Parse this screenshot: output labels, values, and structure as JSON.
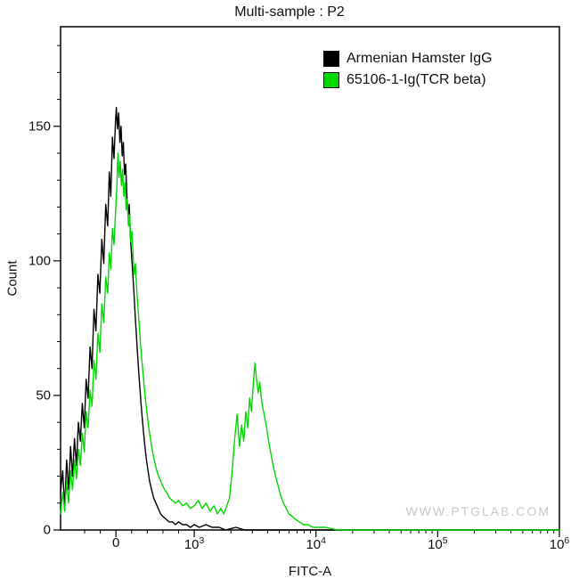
{
  "page": {
    "watermark": "WWW.PTGLAB.COM",
    "background": "#ffffff"
  },
  "chart_data": {
    "type": "line",
    "subtype": "flow-cytometry-histogram-overlay",
    "title": "Multi-sample : P2",
    "xlabel": "FITC-A",
    "ylabel": "Count",
    "grid": false,
    "legend_position": "top-right",
    "x_axis": {
      "scale": "biexponential",
      "linear_min": -707,
      "linear_max": 1000,
      "log_max": 1000000,
      "linear_fraction": 0.268,
      "major_ticks": [
        {
          "value": 0,
          "label": "0"
        },
        {
          "value": 1000,
          "label": "10",
          "sup": "3"
        },
        {
          "value": 10000,
          "label": "10",
          "sup": "4"
        },
        {
          "value": 100000,
          "label": "10",
          "sup": "5"
        },
        {
          "value": 1000000,
          "label": "10",
          "sup": "6"
        }
      ],
      "minor_ticks_linear": [
        -400,
        -200,
        200,
        400,
        600,
        800
      ]
    },
    "y_axis": {
      "min": 0,
      "max": 187,
      "major_ticks": [
        0,
        50,
        100,
        150
      ],
      "minor_step": 10
    },
    "series": [
      {
        "name": "Armenian Hamster IgG",
        "color": "#000000",
        "points": [
          [
            -707,
            14
          ],
          [
            -680,
            22
          ],
          [
            -655,
            8
          ],
          [
            -630,
            26
          ],
          [
            -605,
            15
          ],
          [
            -580,
            31
          ],
          [
            -555,
            20
          ],
          [
            -530,
            34
          ],
          [
            -505,
            24
          ],
          [
            -480,
            40
          ],
          [
            -455,
            33
          ],
          [
            -430,
            47
          ],
          [
            -405,
            38
          ],
          [
            -380,
            56
          ],
          [
            -355,
            49
          ],
          [
            -330,
            68
          ],
          [
            -305,
            60
          ],
          [
            -280,
            82
          ],
          [
            -255,
            74
          ],
          [
            -230,
            95
          ],
          [
            -205,
            88
          ],
          [
            -180,
            108
          ],
          [
            -155,
            99
          ],
          [
            -130,
            121
          ],
          [
            -105,
            113
          ],
          [
            -85,
            133
          ],
          [
            -65,
            124
          ],
          [
            -45,
            146
          ],
          [
            -25,
            138
          ],
          [
            -5,
            152
          ],
          [
            5,
            157
          ],
          [
            20,
            149
          ],
          [
            35,
            155
          ],
          [
            50,
            144
          ],
          [
            65,
            150
          ],
          [
            80,
            139
          ],
          [
            95,
            144
          ],
          [
            110,
            132
          ],
          [
            125,
            136
          ],
          [
            140,
            124
          ],
          [
            155,
            117
          ],
          [
            170,
            121
          ],
          [
            185,
            109
          ],
          [
            200,
            102
          ],
          [
            215,
            95
          ],
          [
            230,
            88
          ],
          [
            245,
            80
          ],
          [
            260,
            73
          ],
          [
            275,
            66
          ],
          [
            290,
            59
          ],
          [
            305,
            53
          ],
          [
            320,
            47
          ],
          [
            335,
            42
          ],
          [
            350,
            37
          ],
          [
            370,
            31
          ],
          [
            390,
            26
          ],
          [
            410,
            22
          ],
          [
            430,
            18
          ],
          [
            455,
            15
          ],
          [
            480,
            12
          ],
          [
            510,
            10
          ],
          [
            540,
            8
          ],
          [
            570,
            6
          ],
          [
            600,
            5
          ],
          [
            640,
            4
          ],
          [
            680,
            3
          ],
          [
            720,
            3
          ],
          [
            760,
            2
          ],
          [
            800,
            3
          ],
          [
            850,
            2
          ],
          [
            900,
            2
          ],
          [
            950,
            1
          ],
          [
            1000,
            2
          ],
          [
            1100,
            1
          ],
          [
            1250,
            2
          ],
          [
            1400,
            1
          ],
          [
            1600,
            1
          ],
          [
            1800,
            0
          ],
          [
            2200,
            1
          ],
          [
            2600,
            0
          ],
          [
            5000,
            0
          ],
          [
            20000,
            0
          ],
          [
            200000,
            0
          ],
          [
            1000000,
            0
          ]
        ]
      },
      {
        "name": "65106-1-Ig(TCR beta)",
        "color": "#00d800",
        "points": [
          [
            -707,
            6
          ],
          [
            -680,
            14
          ],
          [
            -655,
            7
          ],
          [
            -630,
            18
          ],
          [
            -605,
            10
          ],
          [
            -580,
            22
          ],
          [
            -555,
            15
          ],
          [
            -530,
            26
          ],
          [
            -505,
            19
          ],
          [
            -480,
            30
          ],
          [
            -455,
            24
          ],
          [
            -430,
            36
          ],
          [
            -405,
            29
          ],
          [
            -380,
            44
          ],
          [
            -355,
            38
          ],
          [
            -330,
            52
          ],
          [
            -305,
            46
          ],
          [
            -280,
            63
          ],
          [
            -255,
            56
          ],
          [
            -230,
            73
          ],
          [
            -205,
            66
          ],
          [
            -180,
            84
          ],
          [
            -155,
            77
          ],
          [
            -130,
            94
          ],
          [
            -105,
            88
          ],
          [
            -85,
            103
          ],
          [
            -65,
            97
          ],
          [
            -45,
            112
          ],
          [
            -25,
            106
          ],
          [
            -5,
            118
          ],
          [
            10,
            126
          ],
          [
            25,
            140
          ],
          [
            40,
            131
          ],
          [
            55,
            137
          ],
          [
            70,
            128
          ],
          [
            85,
            134
          ],
          [
            100,
            124
          ],
          [
            115,
            129
          ],
          [
            130,
            119
          ],
          [
            145,
            123
          ],
          [
            160,
            113
          ],
          [
            175,
            117
          ],
          [
            190,
            107
          ],
          [
            205,
            111
          ],
          [
            220,
            101
          ],
          [
            235,
            95
          ],
          [
            250,
            99
          ],
          [
            265,
            89
          ],
          [
            280,
            83
          ],
          [
            295,
            77
          ],
          [
            310,
            71
          ],
          [
            325,
            65
          ],
          [
            340,
            60
          ],
          [
            355,
            55
          ],
          [
            375,
            49
          ],
          [
            395,
            44
          ],
          [
            415,
            39
          ],
          [
            435,
            35
          ],
          [
            455,
            31
          ],
          [
            480,
            27
          ],
          [
            505,
            24
          ],
          [
            530,
            21
          ],
          [
            560,
            19
          ],
          [
            590,
            17
          ],
          [
            620,
            15
          ],
          [
            650,
            14
          ],
          [
            680,
            12
          ],
          [
            720,
            11
          ],
          [
            760,
            10
          ],
          [
            800,
            11
          ],
          [
            850,
            9
          ],
          [
            900,
            10
          ],
          [
            950,
            8
          ],
          [
            1000,
            9
          ],
          [
            1080,
            11
          ],
          [
            1160,
            8
          ],
          [
            1250,
            10
          ],
          [
            1350,
            7
          ],
          [
            1450,
            9
          ],
          [
            1550,
            6
          ],
          [
            1650,
            8
          ],
          [
            1750,
            6
          ],
          [
            1850,
            9
          ],
          [
            1950,
            12
          ],
          [
            2050,
            22
          ],
          [
            2150,
            34
          ],
          [
            2250,
            43
          ],
          [
            2350,
            31
          ],
          [
            2450,
            39
          ],
          [
            2550,
            33
          ],
          [
            2650,
            44
          ],
          [
            2750,
            38
          ],
          [
            2850,
            49
          ],
          [
            2950,
            44
          ],
          [
            3050,
            54
          ],
          [
            3150,
            62
          ],
          [
            3250,
            56
          ],
          [
            3350,
            51
          ],
          [
            3450,
            55
          ],
          [
            3600,
            47
          ],
          [
            3750,
            43
          ],
          [
            3900,
            39
          ],
          [
            4050,
            34
          ],
          [
            4200,
            30
          ],
          [
            4400,
            25
          ],
          [
            4600,
            21
          ],
          [
            4850,
            17
          ],
          [
            5100,
            13
          ],
          [
            5400,
            10
          ],
          [
            5700,
            8
          ],
          [
            6000,
            6
          ],
          [
            6400,
            5
          ],
          [
            6800,
            4
          ],
          [
            7300,
            3
          ],
          [
            7900,
            2
          ],
          [
            8600,
            2
          ],
          [
            9400,
            1
          ],
          [
            10500,
            1
          ],
          [
            12000,
            1
          ],
          [
            15000,
            0
          ],
          [
            30000,
            0
          ],
          [
            300000,
            0
          ],
          [
            1000000,
            0
          ]
        ]
      }
    ]
  }
}
